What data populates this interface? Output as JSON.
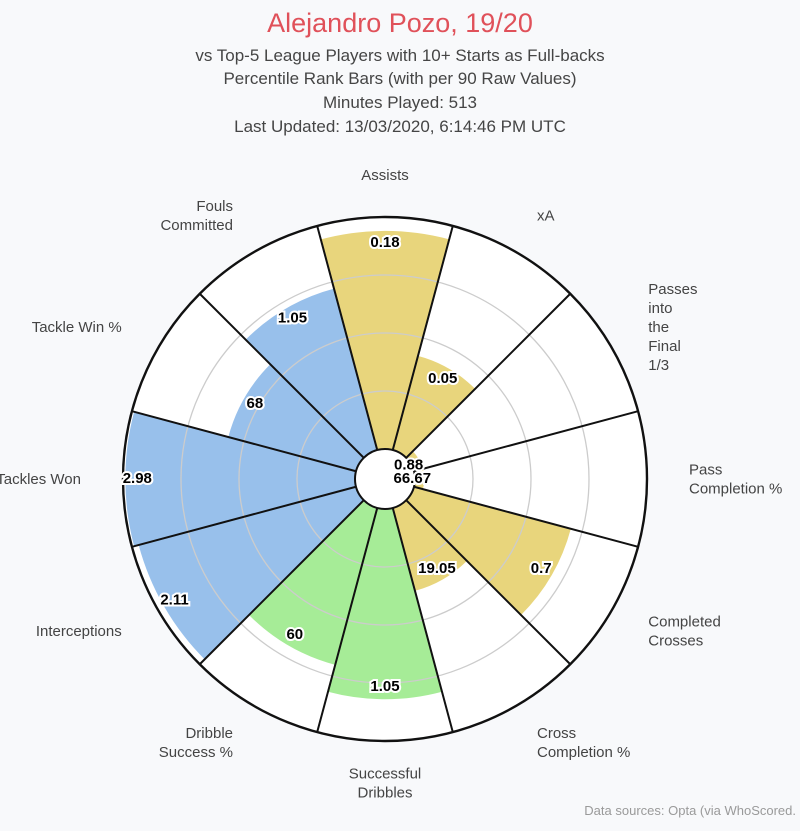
{
  "header": {
    "title": "Alejandro Pozo, 19/20",
    "subtitle_lines": [
      "vs Top-5 League Players with 10+ Starts as Full-backs",
      "Percentile Rank Bars (with per 90 Raw Values)",
      "Minutes Played: 513",
      "Last Updated: 13/03/2020, 6:14:46 PM UTC"
    ]
  },
  "source": "Data sources: Opta (via WhoScored.",
  "colors": {
    "attacking": "#e8d57c",
    "possession": "#a6ec97",
    "defending": "#98c0eb",
    "title": "#e0515a",
    "grid": "#cccccc",
    "outline": "#111111"
  },
  "chart_data": {
    "type": "polar-bar",
    "rlim": [
      0,
      100
    ],
    "rings": [
      25,
      50,
      75,
      100
    ],
    "grid": true,
    "categories": [
      {
        "label": "Assists",
        "group": "attacking",
        "percentile": 94,
        "raw": "0.18"
      },
      {
        "label": "xA",
        "group": "attacking",
        "percentile": 42,
        "raw": "0.05"
      },
      {
        "label": "Passes into the Final 1/3",
        "group": "attacking",
        "percentile": 4,
        "raw": "0.88"
      },
      {
        "label": "Pass Completion %",
        "group": "attacking",
        "percentile": 4,
        "raw": "66.67"
      },
      {
        "label": "Completed Crosses",
        "group": "attacking",
        "percentile": 70,
        "raw": "0.7"
      },
      {
        "label": "Cross Completion %",
        "group": "attacking",
        "percentile": 37,
        "raw": "19.05"
      },
      {
        "label": "Successful Dribbles",
        "group": "possession",
        "percentile": 82,
        "raw": "1.05"
      },
      {
        "label": "Dribble Success %",
        "group": "possession",
        "percentile": 70,
        "raw": "60"
      },
      {
        "label": "Interceptions",
        "group": "defending",
        "percentile": 97,
        "raw": "2.11"
      },
      {
        "label": "Tackles Won",
        "group": "defending",
        "percentile": 99,
        "raw": "2.98"
      },
      {
        "label": "Tackle Win %",
        "group": "defending",
        "percentile": 57,
        "raw": "68"
      },
      {
        "label": "Fouls Committed",
        "group": "defending",
        "percentile": 72,
        "raw": "1.05"
      }
    ]
  }
}
